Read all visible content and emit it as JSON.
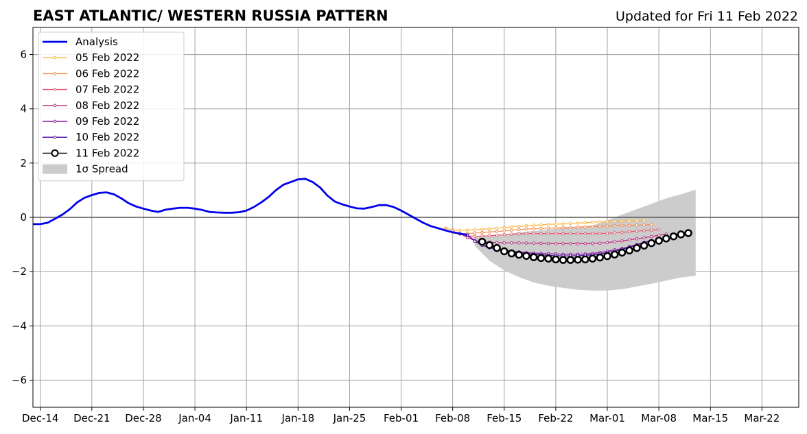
{
  "chart_data": {
    "type": "line",
    "title": "EAST ATLANTIC/ WESTERN RUSSIA PATTERN",
    "subtitle": "Updated for Fri 11 Feb 2022",
    "xlabel": "",
    "ylabel": "",
    "xlim": [
      "2021-12-13",
      "2022-03-27"
    ],
    "ylim": [
      -7,
      7
    ],
    "grid": true,
    "legend_position": "top-left",
    "x_ticks": [
      {
        "date": "2021-12-14",
        "label": "Dec-14"
      },
      {
        "date": "2021-12-21",
        "label": "Dec-21"
      },
      {
        "date": "2021-12-28",
        "label": "Dec-28"
      },
      {
        "date": "2022-01-04",
        "label": "Jan-04"
      },
      {
        "date": "2022-01-11",
        "label": "Jan-11"
      },
      {
        "date": "2022-01-18",
        "label": "Jan-18"
      },
      {
        "date": "2022-01-25",
        "label": "Jan-25"
      },
      {
        "date": "2022-02-01",
        "label": "Feb-01"
      },
      {
        "date": "2022-02-08",
        "label": "Feb-08"
      },
      {
        "date": "2022-02-15",
        "label": "Feb-15"
      },
      {
        "date": "2022-02-22",
        "label": "Feb-22"
      },
      {
        "date": "2022-03-01",
        "label": "Mar-01"
      },
      {
        "date": "2022-03-08",
        "label": "Mar-08"
      },
      {
        "date": "2022-03-15",
        "label": "Mar-15"
      },
      {
        "date": "2022-03-22",
        "label": "Mar-22"
      }
    ],
    "y_ticks": [
      {
        "value": -6,
        "label": "−6"
      },
      {
        "value": -4,
        "label": "−4"
      },
      {
        "value": -2,
        "label": "−2"
      },
      {
        "value": 0,
        "label": "0"
      },
      {
        "value": 2,
        "label": "2"
      },
      {
        "value": 4,
        "label": "4"
      },
      {
        "value": 6,
        "label": "6"
      }
    ],
    "analysis": {
      "name": "Analysis",
      "color": "#0000ee",
      "x": [
        "2021-12-13",
        "2021-12-14",
        "2021-12-15",
        "2021-12-16",
        "2021-12-17",
        "2021-12-18",
        "2021-12-19",
        "2021-12-20",
        "2021-12-21",
        "2021-12-22",
        "2021-12-23",
        "2021-12-24",
        "2021-12-25",
        "2021-12-26",
        "2021-12-27",
        "2021-12-28",
        "2021-12-29",
        "2021-12-30",
        "2021-12-31",
        "2022-01-01",
        "2022-01-02",
        "2022-01-03",
        "2022-01-04",
        "2022-01-05",
        "2022-01-06",
        "2022-01-07",
        "2022-01-08",
        "2022-01-09",
        "2022-01-10",
        "2022-01-11",
        "2022-01-12",
        "2022-01-13",
        "2022-01-14",
        "2022-01-15",
        "2022-01-16",
        "2022-01-17",
        "2022-01-18",
        "2022-01-19",
        "2022-01-20",
        "2022-01-21",
        "2022-01-22",
        "2022-01-23",
        "2022-01-24",
        "2022-01-25",
        "2022-01-26",
        "2022-01-27",
        "2022-01-28",
        "2022-01-29",
        "2022-01-30",
        "2022-01-31",
        "2022-02-01",
        "2022-02-02",
        "2022-02-03",
        "2022-02-04",
        "2022-02-05",
        "2022-02-06",
        "2022-02-07",
        "2022-02-08",
        "2022-02-09",
        "2022-02-10"
      ],
      "y": [
        -0.25,
        -0.25,
        -0.2,
        -0.05,
        0.1,
        0.3,
        0.55,
        0.72,
        0.82,
        0.9,
        0.92,
        0.85,
        0.7,
        0.52,
        0.4,
        0.32,
        0.25,
        0.2,
        0.28,
        0.32,
        0.35,
        0.35,
        0.32,
        0.27,
        0.2,
        0.18,
        0.17,
        0.17,
        0.19,
        0.25,
        0.38,
        0.55,
        0.75,
        1.0,
        1.2,
        1.3,
        1.4,
        1.42,
        1.3,
        1.1,
        0.8,
        0.58,
        0.48,
        0.4,
        0.33,
        0.32,
        0.38,
        0.45,
        0.45,
        0.38,
        0.25,
        0.1,
        -0.05,
        -0.2,
        -0.32,
        -0.4,
        -0.48,
        -0.55,
        -0.6,
        -0.65
      ]
    },
    "spread": {
      "name": "1σ Spread",
      "color": "#cccccc",
      "x": [
        "2022-02-11",
        "2022-02-13",
        "2022-02-15",
        "2022-02-17",
        "2022-02-19",
        "2022-02-21",
        "2022-02-23",
        "2022-02-25",
        "2022-02-27",
        "2022-03-01",
        "2022-03-03",
        "2022-03-05",
        "2022-03-07",
        "2022-03-09",
        "2022-03-11",
        "2022-03-13"
      ],
      "upper": [
        -0.7,
        -0.7,
        -0.65,
        -0.55,
        -0.5,
        -0.45,
        -0.4,
        -0.35,
        -0.3,
        -0.1,
        0.1,
        0.3,
        0.5,
        0.7,
        0.85,
        1.02
      ],
      "lower": [
        -1.05,
        -1.6,
        -1.95,
        -2.2,
        -2.4,
        -2.52,
        -2.6,
        -2.67,
        -2.7,
        -2.7,
        -2.65,
        -2.55,
        -2.45,
        -2.33,
        -2.22,
        -2.15
      ]
    },
    "series": [
      {
        "name": "05 Feb 2022",
        "color": "#fbb33c",
        "x": [
          "2022-02-07",
          "2022-02-08",
          "2022-02-09",
          "2022-02-10",
          "2022-02-11",
          "2022-02-12",
          "2022-02-13",
          "2022-02-14",
          "2022-02-15",
          "2022-02-16",
          "2022-02-17",
          "2022-02-18",
          "2022-02-19",
          "2022-02-20",
          "2022-02-21",
          "2022-02-22",
          "2022-02-23",
          "2022-02-24",
          "2022-02-25",
          "2022-02-26",
          "2022-02-27",
          "2022-02-28",
          "2022-03-01",
          "2022-03-02",
          "2022-03-03",
          "2022-03-04",
          "2022-03-05",
          "2022-03-06"
        ],
        "y": [
          -0.4,
          -0.46,
          -0.48,
          -0.47,
          -0.46,
          -0.44,
          -0.42,
          -0.4,
          -0.38,
          -0.35,
          -0.33,
          -0.31,
          -0.29,
          -0.28,
          -0.26,
          -0.25,
          -0.24,
          -0.22,
          -0.21,
          -0.2,
          -0.18,
          -0.17,
          -0.16,
          -0.15,
          -0.14,
          -0.13,
          -0.12,
          -0.12
        ]
      },
      {
        "name": "06 Feb 2022",
        "color": "#f48a4d",
        "x": [
          "2022-02-07",
          "2022-02-08",
          "2022-02-09",
          "2022-02-10",
          "2022-02-11",
          "2022-02-12",
          "2022-02-13",
          "2022-02-14",
          "2022-02-15",
          "2022-02-16",
          "2022-02-17",
          "2022-02-18",
          "2022-02-19",
          "2022-02-20",
          "2022-02-21",
          "2022-02-22",
          "2022-02-23",
          "2022-02-24",
          "2022-02-25",
          "2022-02-26",
          "2022-02-27",
          "2022-02-28",
          "2022-03-01",
          "2022-03-02",
          "2022-03-03",
          "2022-03-04",
          "2022-03-05",
          "2022-03-06",
          "2022-03-07"
        ],
        "y": [
          -0.45,
          -0.55,
          -0.6,
          -0.6,
          -0.58,
          -0.56,
          -0.54,
          -0.52,
          -0.5,
          -0.47,
          -0.45,
          -0.43,
          -0.42,
          -0.41,
          -0.4,
          -0.39,
          -0.38,
          -0.37,
          -0.36,
          -0.35,
          -0.34,
          -0.33,
          -0.32,
          -0.31,
          -0.3,
          -0.3,
          -0.29,
          -0.28,
          -0.27
        ]
      },
      {
        "name": "07 Feb 2022",
        "color": "#e3596b",
        "x": [
          "2022-02-08",
          "2022-02-09",
          "2022-02-10",
          "2022-02-11",
          "2022-02-12",
          "2022-02-13",
          "2022-02-14",
          "2022-02-15",
          "2022-02-16",
          "2022-02-17",
          "2022-02-18",
          "2022-02-19",
          "2022-02-20",
          "2022-02-21",
          "2022-02-22",
          "2022-02-23",
          "2022-02-24",
          "2022-02-25",
          "2022-02-26",
          "2022-02-27",
          "2022-02-28",
          "2022-03-01",
          "2022-03-02",
          "2022-03-03",
          "2022-03-04",
          "2022-03-05",
          "2022-03-06",
          "2022-03-07",
          "2022-03-08"
        ],
        "y": [
          -0.5,
          -0.62,
          -0.68,
          -0.7,
          -0.69,
          -0.68,
          -0.66,
          -0.64,
          -0.62,
          -0.61,
          -0.6,
          -0.6,
          -0.6,
          -0.6,
          -0.6,
          -0.6,
          -0.6,
          -0.6,
          -0.6,
          -0.6,
          -0.6,
          -0.59,
          -0.57,
          -0.55,
          -0.53,
          -0.51,
          -0.49,
          -0.47,
          -0.45
        ]
      },
      {
        "name": "08 Feb 2022",
        "color": "#b72b7d",
        "x": [
          "2022-02-09",
          "2022-02-10",
          "2022-02-11",
          "2022-02-12",
          "2022-02-13",
          "2022-02-14",
          "2022-02-15",
          "2022-02-16",
          "2022-02-17",
          "2022-02-18",
          "2022-02-19",
          "2022-02-20",
          "2022-02-21",
          "2022-02-22",
          "2022-02-23",
          "2022-02-24",
          "2022-02-25",
          "2022-02-26",
          "2022-02-27",
          "2022-02-28",
          "2022-03-01",
          "2022-03-02",
          "2022-03-03",
          "2022-03-04",
          "2022-03-05",
          "2022-03-06",
          "2022-03-07",
          "2022-03-08",
          "2022-03-09"
        ],
        "y": [
          -0.6,
          -0.75,
          -0.85,
          -0.9,
          -0.92,
          -0.93,
          -0.94,
          -0.94,
          -0.94,
          -0.95,
          -0.95,
          -0.96,
          -0.96,
          -0.97,
          -0.97,
          -0.97,
          -0.97,
          -0.97,
          -0.96,
          -0.95,
          -0.93,
          -0.9,
          -0.87,
          -0.83,
          -0.79,
          -0.75,
          -0.71,
          -0.66,
          -0.62
        ]
      },
      {
        "name": "09 Feb 2022",
        "color": "#8b1a9e",
        "x": [
          "2022-02-10",
          "2022-02-11",
          "2022-02-12",
          "2022-02-13",
          "2022-02-14",
          "2022-02-15",
          "2022-02-16",
          "2022-02-17",
          "2022-02-18",
          "2022-02-19",
          "2022-02-20",
          "2022-02-21",
          "2022-02-22",
          "2022-02-23",
          "2022-02-24",
          "2022-02-25",
          "2022-02-26",
          "2022-02-27",
          "2022-02-28",
          "2022-03-01",
          "2022-03-02",
          "2022-03-03",
          "2022-03-04",
          "2022-03-05",
          "2022-03-06",
          "2022-03-07"
        ],
        "y": [
          -0.65,
          -0.85,
          -1.0,
          -1.08,
          -1.15,
          -1.2,
          -1.24,
          -1.27,
          -1.3,
          -1.32,
          -1.33,
          -1.34,
          -1.35,
          -1.36,
          -1.36,
          -1.36,
          -1.35,
          -1.33,
          -1.3,
          -1.25,
          -1.2,
          -1.15,
          -1.08,
          -1.0,
          -0.92,
          -0.85
        ]
      },
      {
        "name": "10 Feb 2022",
        "color": "#4a0aa0",
        "x": [
          "2022-02-10",
          "2022-02-11",
          "2022-02-12",
          "2022-02-13",
          "2022-02-14",
          "2022-02-15",
          "2022-02-16",
          "2022-02-17",
          "2022-02-18",
          "2022-02-19",
          "2022-02-20",
          "2022-02-21",
          "2022-02-22",
          "2022-02-23",
          "2022-02-24",
          "2022-02-25",
          "2022-02-26",
          "2022-02-27",
          "2022-02-28",
          "2022-03-01",
          "2022-03-02",
          "2022-03-03",
          "2022-03-04",
          "2022-03-05",
          "2022-03-06",
          "2022-03-07"
        ],
        "y": [
          -0.65,
          -0.88,
          -1.03,
          -1.12,
          -1.18,
          -1.22,
          -1.26,
          -1.3,
          -1.33,
          -1.36,
          -1.38,
          -1.4,
          -1.41,
          -1.42,
          -1.42,
          -1.41,
          -1.4,
          -1.38,
          -1.35,
          -1.3,
          -1.25,
          -1.18,
          -1.1,
          -1.02,
          -0.94,
          -0.86
        ]
      },
      {
        "name": "11 Feb 2022",
        "color": "#000000",
        "marker": "open-circle",
        "x": [
          "2022-02-12",
          "2022-02-13",
          "2022-02-14",
          "2022-02-15",
          "2022-02-16",
          "2022-02-17",
          "2022-02-18",
          "2022-02-19",
          "2022-02-20",
          "2022-02-21",
          "2022-02-22",
          "2022-02-23",
          "2022-02-24",
          "2022-02-25",
          "2022-02-26",
          "2022-02-27",
          "2022-02-28",
          "2022-03-01",
          "2022-03-02",
          "2022-03-03",
          "2022-03-04",
          "2022-03-05",
          "2022-03-06",
          "2022-03-07",
          "2022-03-08",
          "2022-03-09",
          "2022-03-10",
          "2022-03-11",
          "2022-03-12"
        ],
        "y": [
          -0.9,
          -1.02,
          -1.13,
          -1.25,
          -1.33,
          -1.38,
          -1.42,
          -1.47,
          -1.5,
          -1.52,
          -1.55,
          -1.57,
          -1.57,
          -1.56,
          -1.55,
          -1.52,
          -1.48,
          -1.43,
          -1.37,
          -1.3,
          -1.22,
          -1.13,
          -1.04,
          -0.95,
          -0.86,
          -0.78,
          -0.7,
          -0.63,
          -0.58
        ]
      }
    ]
  }
}
